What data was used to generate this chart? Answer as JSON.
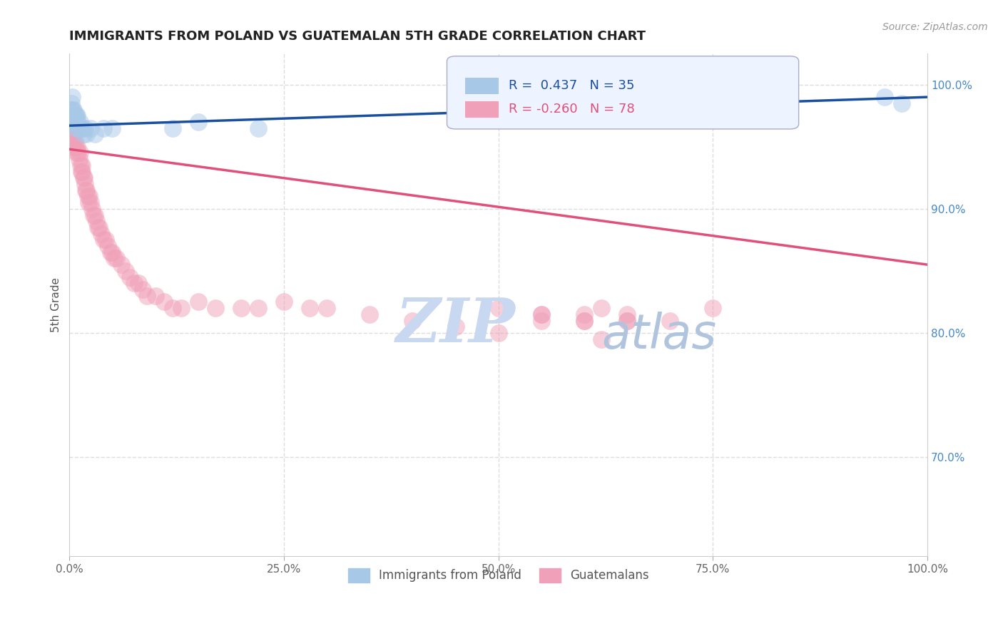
{
  "title": "IMMIGRANTS FROM POLAND VS GUATEMALAN 5TH GRADE CORRELATION CHART",
  "source_text": "Source: ZipAtlas.com",
  "ylabel": "5th Grade",
  "right_ytick_labels": [
    "100.0%",
    "90.0%",
    "80.0%",
    "70.0%"
  ],
  "right_ytick_values": [
    1.0,
    0.9,
    0.8,
    0.7
  ],
  "legend_blue_r": "R =  0.437",
  "legend_blue_n": "N = 35",
  "legend_pink_r": "R = -0.260",
  "legend_pink_n": "N = 78",
  "legend_blue_name": "Immigrants from Poland",
  "legend_pink_name": "Guatemalans",
  "blue_color": "#a8c8e8",
  "pink_color": "#f0a0b8",
  "blue_line_color": "#1a4fa0",
  "pink_line_color": "#e0507a",
  "watermark_zip": "ZIP",
  "watermark_atlas": "atlas",
  "watermark_color_zip": "#c8d8f0",
  "watermark_color_atlas": "#b8c8e0",
  "background_color": "#ffffff",
  "grid_color": "#dddddd",
  "blue_x": [
    0.001,
    0.002,
    0.002,
    0.003,
    0.003,
    0.003,
    0.004,
    0.004,
    0.005,
    0.005,
    0.005,
    0.006,
    0.006,
    0.007,
    0.007,
    0.008,
    0.008,
    0.009,
    0.01,
    0.01,
    0.012,
    0.013,
    0.015,
    0.016,
    0.018,
    0.02,
    0.025,
    0.03,
    0.04,
    0.05,
    0.12,
    0.15,
    0.22,
    0.95,
    0.97
  ],
  "blue_y": [
    0.975,
    0.98,
    0.985,
    0.975,
    0.97,
    0.99,
    0.975,
    0.98,
    0.975,
    0.97,
    0.98,
    0.975,
    0.97,
    0.975,
    0.97,
    0.975,
    0.965,
    0.975,
    0.97,
    0.965,
    0.97,
    0.965,
    0.965,
    0.96,
    0.965,
    0.96,
    0.965,
    0.96,
    0.965,
    0.965,
    0.965,
    0.97,
    0.965,
    0.99,
    0.985
  ],
  "pink_x": [
    0.001,
    0.002,
    0.002,
    0.003,
    0.003,
    0.004,
    0.005,
    0.005,
    0.006,
    0.007,
    0.008,
    0.009,
    0.01,
    0.011,
    0.012,
    0.013,
    0.014,
    0.015,
    0.015,
    0.016,
    0.017,
    0.018,
    0.019,
    0.02,
    0.021,
    0.022,
    0.023,
    0.025,
    0.026,
    0.028,
    0.03,
    0.031,
    0.033,
    0.035,
    0.037,
    0.04,
    0.042,
    0.045,
    0.048,
    0.05,
    0.052,
    0.055,
    0.06,
    0.065,
    0.07,
    0.075,
    0.08,
    0.085,
    0.09,
    0.1,
    0.11,
    0.12,
    0.13,
    0.15,
    0.17,
    0.2,
    0.22,
    0.25,
    0.28,
    0.3,
    0.35,
    0.4,
    0.45,
    0.5,
    0.55,
    0.6,
    0.65,
    0.5,
    0.55,
    0.6,
    0.62,
    0.65,
    0.55,
    0.6,
    0.65,
    0.7,
    0.75,
    0.62
  ],
  "pink_y": [
    0.97,
    0.965,
    0.96,
    0.96,
    0.955,
    0.95,
    0.955,
    0.96,
    0.955,
    0.95,
    0.945,
    0.95,
    0.945,
    0.94,
    0.945,
    0.935,
    0.93,
    0.935,
    0.93,
    0.925,
    0.925,
    0.92,
    0.915,
    0.915,
    0.91,
    0.905,
    0.91,
    0.905,
    0.9,
    0.895,
    0.895,
    0.89,
    0.885,
    0.885,
    0.88,
    0.875,
    0.875,
    0.87,
    0.865,
    0.865,
    0.86,
    0.86,
    0.855,
    0.85,
    0.845,
    0.84,
    0.84,
    0.835,
    0.83,
    0.83,
    0.825,
    0.82,
    0.82,
    0.825,
    0.82,
    0.82,
    0.82,
    0.825,
    0.82,
    0.82,
    0.815,
    0.81,
    0.805,
    0.8,
    0.81,
    0.81,
    0.81,
    0.82,
    0.815,
    0.815,
    0.82,
    0.815,
    0.815,
    0.81,
    0.81,
    0.81,
    0.82,
    0.795
  ],
  "blue_trend_x0": 0.0,
  "blue_trend_y0": 0.967,
  "blue_trend_x1": 1.0,
  "blue_trend_y1": 0.99,
  "pink_trend_x0": 0.0,
  "pink_trend_y0": 0.948,
  "pink_trend_x1": 1.0,
  "pink_trend_y1": 0.855,
  "xlim": [
    0.0,
    1.0
  ],
  "ylim": [
    0.62,
    1.025
  ],
  "xticks": [
    0.0,
    0.25,
    0.5,
    0.75,
    1.0
  ],
  "xtick_labels": [
    "0.0%",
    "25.0%",
    "50.0%",
    "75.0%",
    "100.0%"
  ]
}
